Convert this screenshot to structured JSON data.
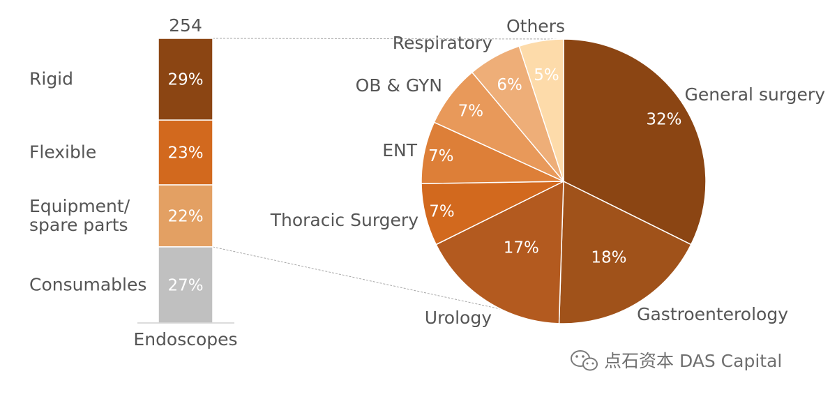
{
  "chart_data": [
    {
      "type": "bar",
      "stacked": true,
      "total": "254",
      "category": "Endoscopes",
      "segments": [
        {
          "name": "Rigid",
          "label_lines": [
            "Rigid"
          ],
          "value": 29,
          "value_label": "29%",
          "color": "#8B4513"
        },
        {
          "name": "Flexible",
          "label_lines": [
            "Flexible"
          ],
          "value": 23,
          "value_label": "23%",
          "color": "#D2691E"
        },
        {
          "name": "Equipment/ spare parts",
          "label_lines": [
            "Equipment/",
            "spare parts"
          ],
          "value": 22,
          "value_label": "22%",
          "color": "#E3A063"
        },
        {
          "name": "Consumables",
          "label_lines": [
            "Consumables"
          ],
          "value": 27,
          "value_label": "27%",
          "color": "#C0C0C0"
        }
      ]
    },
    {
      "type": "pie",
      "slices": [
        {
          "name": "General surgery",
          "value": 32,
          "value_label": "32%",
          "color": "#8B4513"
        },
        {
          "name": "Gastroenterology",
          "value": 18,
          "value_label": "18%",
          "color": "#A0521A"
        },
        {
          "name": "Urology",
          "value": 17,
          "value_label": "17%",
          "color": "#B35A1F"
        },
        {
          "name": "Thoracic Surgery",
          "value": 7,
          "value_label": "7%",
          "color": "#D2691E"
        },
        {
          "name": "ENT",
          "value": 7,
          "value_label": "7%",
          "color": "#DD7F38"
        },
        {
          "name": "OB & GYN",
          "value": 7,
          "value_label": "7%",
          "color": "#E8995A"
        },
        {
          "name": "Respiratory",
          "value": 6,
          "value_label": "6%",
          "color": "#EEAE78"
        },
        {
          "name": "Others",
          "value": 5,
          "value_label": "5%",
          "color": "#FDDBAA"
        }
      ]
    }
  ],
  "watermark": {
    "icon": "wechat-icon",
    "text": "点石资本 DAS Capital"
  }
}
